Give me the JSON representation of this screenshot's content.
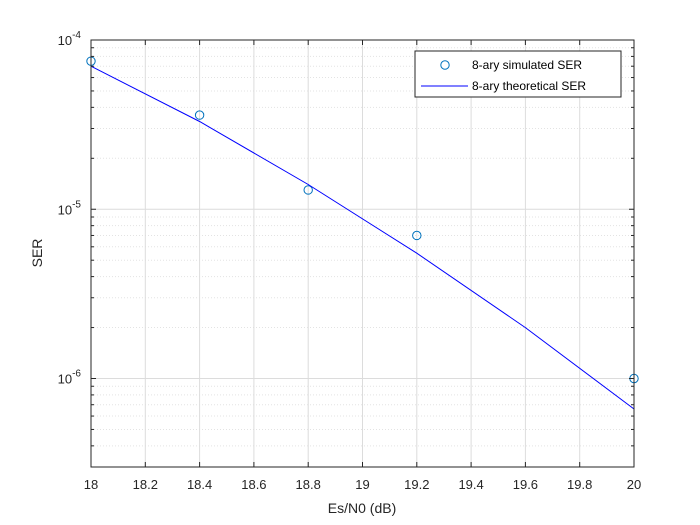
{
  "chart_data": {
    "type": "scatter",
    "title": "",
    "xlabel": "Es/N0 (dB)",
    "ylabel": "SER",
    "xlim": [
      18,
      20
    ],
    "ylim": [
      3e-07,
      0.0001
    ],
    "yscale": "log",
    "grid": true,
    "minor_grid": true,
    "legend_position": "top-right",
    "x_ticks": [
      18,
      18.2,
      18.4,
      18.6,
      18.8,
      19,
      19.2,
      19.4,
      19.6,
      19.8,
      20
    ],
    "x_tick_labels": [
      "18",
      "18.2",
      "18.4",
      "18.6",
      "18.8",
      "19",
      "19.2",
      "19.4",
      "19.6",
      "19.8",
      "20"
    ],
    "y_ticks": [
      {
        "value": 1e-06,
        "base": "10",
        "exponent": "-6"
      },
      {
        "value": 1e-05,
        "base": "10",
        "exponent": "-5"
      },
      {
        "value": 0.0001,
        "base": "10",
        "exponent": "-4"
      }
    ],
    "series": [
      {
        "name": "8-ary simulated SER",
        "kind": "markers",
        "marker": "circle",
        "color": "#0072BD",
        "x": [
          18,
          18.4,
          18.8,
          19.2,
          20
        ],
        "y": [
          7.5e-05,
          3.6e-05,
          1.3e-05,
          7e-06,
          1e-06
        ]
      },
      {
        "name": "8-ary theoretical SER",
        "kind": "line",
        "color": "#0000FF",
        "x": [
          18,
          18.4,
          18.8,
          19.2,
          19.6,
          20
        ],
        "y": [
          7e-05,
          3.3e-05,
          1.4e-05,
          5.5e-06,
          2e-06,
          6.6e-07
        ]
      }
    ]
  }
}
